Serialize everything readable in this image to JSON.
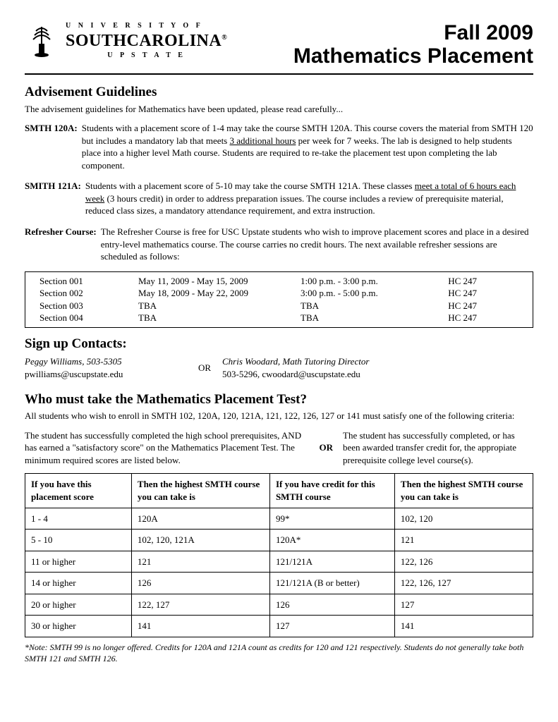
{
  "header": {
    "univ_top": "U N I V E R S I T Y   O F",
    "univ_main": "SOUTHCAROLINA",
    "univ_sub": "U P S T A T E",
    "title_line1": "Fall 2009",
    "title_line2": "Mathematics Placement"
  },
  "advisement": {
    "heading": "Advisement Guidelines",
    "intro": "The advisement guidelines for Mathematics have been updated, please read carefully...",
    "smth120a_label": "SMTH 120A:",
    "smth120a_text_a": "Students with a placement score of 1-4 may take the course SMTH 120A. This course covers the material from SMTH 120 but includes a mandatory lab that meets ",
    "smth120a_underline": "3 additional hours",
    "smth120a_text_b": " per week for 7 weeks. The lab is designed to help students place into a higher level Math course. Students are required to re-take the placement test upon completing the lab component.",
    "smith121a_label": "SMITH 121A:",
    "smith121a_text_a": "Students with a placement score of 5-10 may take the course SMTH 121A. These classes ",
    "smith121a_underline1": "meet a total of 6 hours each week",
    "smith121a_text_b": " (3 hours credit) in order to address preparation issues. The course includes a review of prerequisite material, reduced class sizes, a mandatory attendance requirement, and extra instruction.",
    "refresher_label": "Refresher Course:",
    "refresher_text": "The Refresher Course is free for USC Upstate students who wish to improve placement scores and place in a desired entry-level mathematics course. The course carries no credit hours. The next available refresher sessions are scheduled as follows:",
    "sessions": [
      {
        "section": "Section 001",
        "dates": "May 11, 2009 - May 15, 2009",
        "time": "1:00 p.m. - 3:00 p.m.",
        "room": "HC 247"
      },
      {
        "section": "Section 002",
        "dates": "May 18, 2009 - May 22, 2009",
        "time": "3:00 p.m. - 5:00 p.m.",
        "room": "HC 247"
      },
      {
        "section": "Section 003",
        "dates": "TBA",
        "time": "TBA",
        "room": "HC 247"
      },
      {
        "section": "Section 004",
        "dates": "TBA",
        "time": "TBA",
        "room": "HC 247"
      }
    ]
  },
  "contacts": {
    "heading": "Sign up Contacts:",
    "left_name": "Peggy Williams, 503-5305",
    "left_email": "pwilliams@uscupstate.edu",
    "or": "OR",
    "right_name": "Chris Woodard, Math Tutoring Director",
    "right_info": "503-5296, cwoodard@uscupstate.edu"
  },
  "who": {
    "heading": "Who must take the Mathematics Placement Test?",
    "intro": "All students who wish to enroll in SMTH 102, 120A, 120, 121A, 121, 122, 126, 127 or 141 must satisfy one of the following criteria:",
    "left": "The student has successfully completed the high school prerequisites, AND has earned a \"satisfactory score\" on the Mathematics Placement Test. The minimum required scores are listed below.",
    "or": "OR",
    "right": "The student has successfully completed, or has been awarded transfer credit for, the appropiate prerequisite college level course(s)."
  },
  "placement_table": {
    "headers": [
      "If you have this placement score",
      "Then the highest SMTH course you can take is",
      "If you have credit for this SMTH course",
      "Then the highest SMTH course you can take is"
    ],
    "rows": [
      [
        "1 - 4",
        "120A",
        "99*",
        "102, 120"
      ],
      [
        "5 - 10",
        "102, 120, 121A",
        "120A*",
        "121"
      ],
      [
        "11 or higher",
        "121",
        "121/121A",
        "122, 126"
      ],
      [
        "14 or higher",
        "126",
        "121/121A (B or better)",
        "122, 126, 127"
      ],
      [
        "20 or higher",
        "122, 127",
        "126",
        "127"
      ],
      [
        "30 or higher",
        "141",
        "127",
        "141"
      ]
    ]
  },
  "footnote": "*Note: SMTH 99 is no longer offered. Credits for 120A and 121A count as credits for 120 and 121 respectively. Students do not generally take both SMTH 121 and SMTH 126."
}
